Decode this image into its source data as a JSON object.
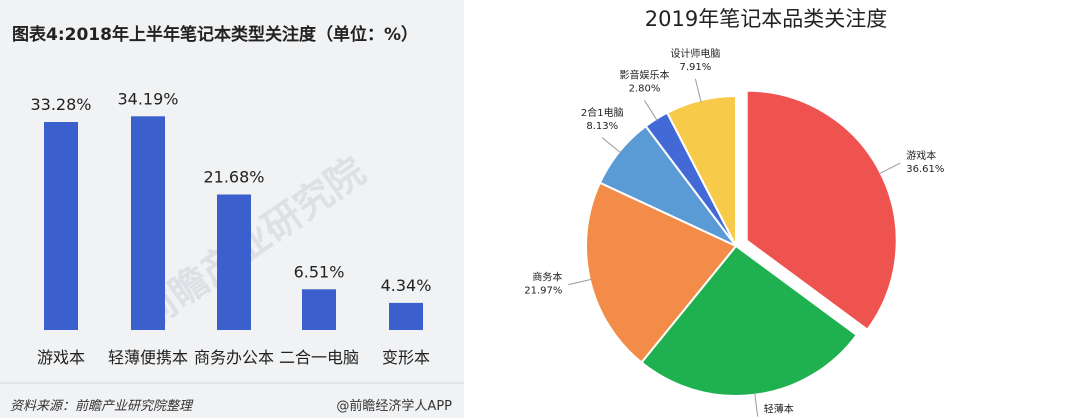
{
  "chart_data": [
    {
      "type": "bar",
      "title": "图表4:2018年上半年笔记本类型关注度（单位：%）",
      "categories": [
        "游戏本",
        "轻薄便携本",
        "商务办公本",
        "二合一电脑",
        "变形本"
      ],
      "values": [
        33.28,
        34.19,
        21.68,
        6.51,
        4.34
      ],
      "value_labels": [
        "33.28%",
        "34.19%",
        "21.68%",
        "6.51%",
        "4.34%"
      ],
      "ylim": [
        0,
        40
      ],
      "grid": false,
      "colors": {
        "bar": "#3b5fcc"
      },
      "source": "资料来源：前瞻产业研究院整理",
      "credit": "@前瞻经济学人APP",
      "watermark": "前瞻产业研究院"
    },
    {
      "type": "pie",
      "title": "2019年笔记本品类关注度",
      "slices": [
        {
          "label": "游戏本",
          "value": 36.61,
          "value_label": "36.61%",
          "color": "#ef5350"
        },
        {
          "label": "轻薄本",
          "value": 26.83,
          "value_label": "26.83%",
          "color": "#1fb04f"
        },
        {
          "label": "商务本",
          "value": 21.97,
          "value_label": "21.97%",
          "color": "#f28c48"
        },
        {
          "label": "2合1电脑",
          "value": 8.13,
          "value_label": "8.13%",
          "color": "#5b9bd5"
        },
        {
          "label": "影音娱乐本",
          "value": 2.8,
          "value_label": "2.80%",
          "color": "#4269d6"
        },
        {
          "label": "设计师电脑",
          "value": 7.91,
          "value_label": "7.91%",
          "color": "#f7ca4a"
        }
      ],
      "exploded": "游戏本"
    }
  ]
}
